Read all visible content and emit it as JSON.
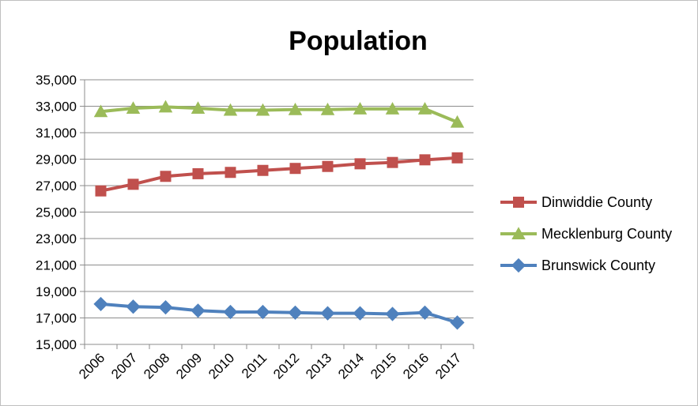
{
  "chart_data": {
    "type": "line",
    "title": "Population",
    "xlabel": "",
    "ylabel": "",
    "x": [
      "2006",
      "2007",
      "2008",
      "2009",
      "2010",
      "2011",
      "2012",
      "2013",
      "2014",
      "2015",
      "2016",
      "2017"
    ],
    "ylim": [
      15000,
      35000
    ],
    "yticks": [
      "15,000",
      "17,000",
      "19,000",
      "21,000",
      "23,000",
      "25,000",
      "27,000",
      "29,000",
      "31,000",
      "33,000",
      "35,000"
    ],
    "grid": true,
    "legend_position": "right",
    "series": [
      {
        "name": "Dinwiddie County",
        "color": "#c0504d",
        "marker": "square",
        "values": [
          26600,
          27100,
          27700,
          27900,
          28000,
          28150,
          28300,
          28450,
          28650,
          28750,
          28950,
          29100
        ]
      },
      {
        "name": "Mecklenburg County",
        "color": "#9bbb59",
        "marker": "triangle",
        "values": [
          32600,
          32850,
          32950,
          32850,
          32700,
          32700,
          32750,
          32750,
          32800,
          32800,
          32800,
          31800
        ]
      },
      {
        "name": "Brunswick County",
        "color": "#4f81bd",
        "marker": "diamond",
        "values": [
          18050,
          17850,
          17800,
          17550,
          17450,
          17450,
          17400,
          17350,
          17350,
          17300,
          17400,
          16650
        ]
      }
    ]
  }
}
